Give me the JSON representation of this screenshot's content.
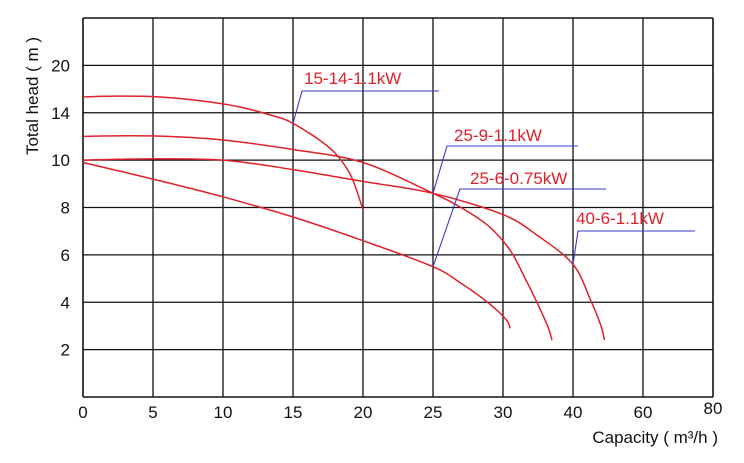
{
  "chart_data": {
    "type": "line",
    "title": "",
    "xlabel": "Capacity ( m³/h )",
    "ylabel": "Total head ( m )",
    "x_tick_labels": [
      "0",
      "5",
      "10",
      "15",
      "20",
      "25",
      "30",
      "40",
      "60",
      "80"
    ],
    "y_tick_labels": [
      "2",
      "4",
      "6",
      "8",
      "10",
      "14",
      "20"
    ],
    "grid": true,
    "legend": "inline labels on curves",
    "colors": {
      "curve": "#e0202a",
      "leader": "#3a3acc",
      "grid": "#111111",
      "text": "#111111"
    },
    "series": [
      {
        "name": "15-14-1.1kW",
        "points": [
          [
            0,
            16.0
          ],
          [
            2,
            16.1
          ],
          [
            5,
            16.05
          ],
          [
            8,
            15.6
          ],
          [
            11,
            14.8
          ],
          [
            14,
            13.6
          ],
          [
            15,
            13.1
          ],
          [
            16,
            12.4
          ],
          [
            17,
            11.6
          ],
          [
            18,
            10.6
          ],
          [
            19,
            9.5
          ],
          [
            19.5,
            8.8
          ],
          [
            20,
            7.9
          ]
        ]
      },
      {
        "name": "25-9-1.1kW",
        "points": [
          [
            0,
            12.0
          ],
          [
            3,
            12.05
          ],
          [
            6,
            12.0
          ],
          [
            10,
            11.7
          ],
          [
            15,
            10.9
          ],
          [
            20,
            9.9
          ],
          [
            25,
            8.6
          ],
          [
            27,
            8.0
          ],
          [
            29,
            7.2
          ],
          [
            31,
            6.2
          ],
          [
            33,
            5.1
          ],
          [
            35,
            3.9
          ],
          [
            36.5,
            2.9
          ],
          [
            37,
            2.4
          ]
        ]
      },
      {
        "name": "25-6-0.75kW",
        "points": [
          [
            0,
            9.9
          ],
          [
            5,
            9.2
          ],
          [
            10,
            8.45
          ],
          [
            15,
            7.6
          ],
          [
            20,
            6.6
          ],
          [
            25,
            5.5
          ],
          [
            27,
            4.8
          ],
          [
            29,
            3.95
          ],
          [
            30.5,
            3.25
          ],
          [
            31,
            2.9
          ]
        ]
      },
      {
        "name": "40-6-1.1kW",
        "points": [
          [
            0,
            10.0
          ],
          [
            5,
            10.1
          ],
          [
            10,
            10.0
          ],
          [
            15,
            9.6
          ],
          [
            20,
            9.1
          ],
          [
            25,
            8.6
          ],
          [
            30,
            7.7
          ],
          [
            35,
            6.8
          ],
          [
            40,
            5.6
          ],
          [
            45,
            4.1
          ],
          [
            48,
            3.0
          ],
          [
            49,
            2.4
          ]
        ]
      }
    ]
  }
}
